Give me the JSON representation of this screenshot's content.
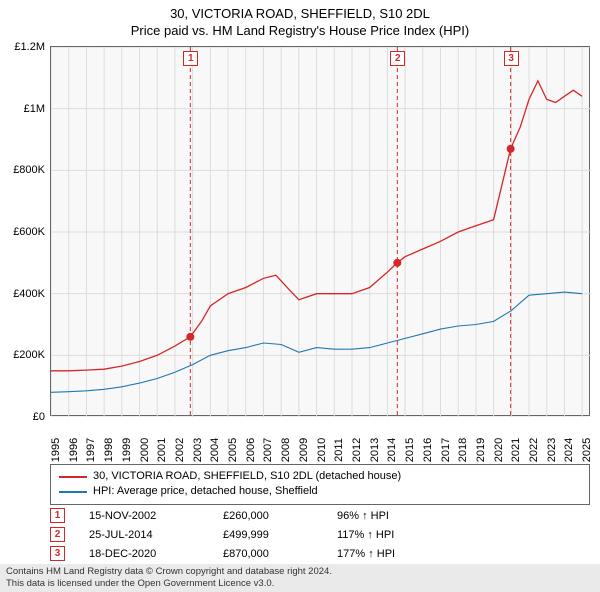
{
  "title": "30, VICTORIA ROAD, SHEFFIELD, S10 2DL",
  "subtitle": "Price paid vs. HM Land Registry's House Price Index (HPI)",
  "chart": {
    "type": "line",
    "background_color": "#f8f8f8",
    "border_color": "#666666",
    "grid_color": "#dcdcdc",
    "x_years": [
      1995,
      1996,
      1997,
      1998,
      1999,
      2000,
      2001,
      2002,
      2003,
      2004,
      2005,
      2006,
      2007,
      2008,
      2009,
      2010,
      2011,
      2012,
      2013,
      2014,
      2015,
      2016,
      2017,
      2018,
      2019,
      2020,
      2021,
      2022,
      2023,
      2024,
      2025
    ],
    "xlim": [
      1995,
      2025.5
    ],
    "ylim": [
      0,
      1200000
    ],
    "ytick_step": 200000,
    "y_labels": [
      "£0",
      "£200K",
      "£400K",
      "£600K",
      "£800K",
      "£1M",
      "£1.2M"
    ],
    "label_fontsize": 11,
    "series": [
      {
        "name": "30, VICTORIA ROAD, SHEFFIELD, S10 2DL (detached house)",
        "color": "#d62728",
        "line_width": 1.3,
        "points": [
          [
            1995,
            150000
          ],
          [
            1996,
            150000
          ],
          [
            1997,
            152000
          ],
          [
            1998,
            155000
          ],
          [
            1999,
            165000
          ],
          [
            2000,
            180000
          ],
          [
            2001,
            200000
          ],
          [
            2002,
            230000
          ],
          [
            2002.87,
            260000
          ],
          [
            2003.5,
            310000
          ],
          [
            2004,
            360000
          ],
          [
            2005,
            400000
          ],
          [
            2006,
            420000
          ],
          [
            2007,
            450000
          ],
          [
            2007.7,
            460000
          ],
          [
            2008.5,
            410000
          ],
          [
            2009,
            380000
          ],
          [
            2010,
            400000
          ],
          [
            2011,
            400000
          ],
          [
            2012,
            400000
          ],
          [
            2013,
            420000
          ],
          [
            2014,
            470000
          ],
          [
            2014.56,
            499999
          ],
          [
            2015,
            520000
          ],
          [
            2016,
            545000
          ],
          [
            2017,
            570000
          ],
          [
            2018,
            600000
          ],
          [
            2019,
            620000
          ],
          [
            2020,
            640000
          ],
          [
            2020.96,
            870000
          ],
          [
            2021.5,
            940000
          ],
          [
            2022,
            1030000
          ],
          [
            2022.5,
            1090000
          ],
          [
            2023,
            1030000
          ],
          [
            2023.5,
            1020000
          ],
          [
            2024,
            1040000
          ],
          [
            2024.5,
            1060000
          ],
          [
            2025,
            1040000
          ]
        ]
      },
      {
        "name": "HPI: Average price, detached house, Sheffield",
        "color": "#1f77b4",
        "line_width": 1.1,
        "points": [
          [
            1995,
            80000
          ],
          [
            1996,
            82000
          ],
          [
            1997,
            85000
          ],
          [
            1998,
            90000
          ],
          [
            1999,
            98000
          ],
          [
            2000,
            110000
          ],
          [
            2001,
            125000
          ],
          [
            2002,
            145000
          ],
          [
            2003,
            170000
          ],
          [
            2004,
            200000
          ],
          [
            2005,
            215000
          ],
          [
            2006,
            225000
          ],
          [
            2007,
            240000
          ],
          [
            2008,
            235000
          ],
          [
            2009,
            210000
          ],
          [
            2010,
            225000
          ],
          [
            2011,
            220000
          ],
          [
            2012,
            220000
          ],
          [
            2013,
            225000
          ],
          [
            2014,
            240000
          ],
          [
            2015,
            255000
          ],
          [
            2016,
            270000
          ],
          [
            2017,
            285000
          ],
          [
            2018,
            295000
          ],
          [
            2019,
            300000
          ],
          [
            2020,
            310000
          ],
          [
            2021,
            345000
          ],
          [
            2022,
            395000
          ],
          [
            2023,
            400000
          ],
          [
            2024,
            405000
          ],
          [
            2025,
            400000
          ]
        ]
      }
    ],
    "sale_markers": [
      {
        "n": "1",
        "x": 2002.87,
        "y": 260000
      },
      {
        "n": "2",
        "x": 2014.56,
        "y": 499999
      },
      {
        "n": "3",
        "x": 2020.96,
        "y": 870000
      }
    ],
    "marker_dot_color": "#d62728",
    "marker_dot_radius": 4,
    "marker_line_color": "#d62728",
    "marker_line_dash": "4,3",
    "marker_badge_border": "#d62728",
    "marker_badge_text": "#d62728"
  },
  "legend": {
    "items": [
      {
        "color": "#d62728",
        "label": "30, VICTORIA ROAD, SHEFFIELD, S10 2DL (detached house)"
      },
      {
        "color": "#1f77b4",
        "label": "HPI: Average price, detached house, Sheffield"
      }
    ]
  },
  "sales": [
    {
      "n": "1",
      "date": "15-NOV-2002",
      "price": "£260,000",
      "pct": "96% ↑ HPI"
    },
    {
      "n": "2",
      "date": "25-JUL-2014",
      "price": "£499,999",
      "pct": "117% ↑ HPI"
    },
    {
      "n": "3",
      "date": "18-DEC-2020",
      "price": "£870,000",
      "pct": "177% ↑ HPI"
    }
  ],
  "footer": {
    "line1": "Contains HM Land Registry data © Crown copyright and database right 2024.",
    "line2": "This data is licensed under the Open Government Licence v3.0."
  }
}
